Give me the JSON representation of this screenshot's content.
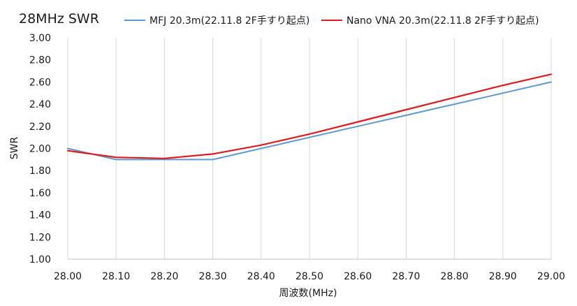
{
  "chart_data": {
    "type": "line",
    "title": "28MHz SWR",
    "xlabel": "周波数(MHz)",
    "ylabel": "SWR",
    "x": [
      28.0,
      28.1,
      28.2,
      28.3,
      28.4,
      28.5,
      28.6,
      28.7,
      28.8,
      28.9,
      29.0
    ],
    "x_tick_labels": [
      "28.00",
      "28.10",
      "28.20",
      "28.30",
      "28.40",
      "28.50",
      "28.60",
      "28.70",
      "28.80",
      "28.90",
      "29.00"
    ],
    "y_tick_labels": [
      "1.00",
      "1.20",
      "1.40",
      "1.60",
      "1.80",
      "2.00",
      "2.20",
      "2.40",
      "2.60",
      "2.80",
      "3.00"
    ],
    "xlim": [
      28.0,
      29.0
    ],
    "ylim": [
      1.0,
      3.0
    ],
    "grid": "vertical",
    "legend_position": "top",
    "series": [
      {
        "name": "MFJ 20.3m(22.11.8 2F手すり起点)",
        "color": "#5b9bd5",
        "values": [
          2.0,
          1.9,
          1.9,
          1.9,
          2.0,
          2.1,
          2.2,
          2.3,
          2.4,
          2.5,
          2.6
        ]
      },
      {
        "name": "Nano VNA 20.3m(22.11.8 2F手すり起点)",
        "color": "#e31a1c",
        "values": [
          1.98,
          1.92,
          1.91,
          1.95,
          2.03,
          2.13,
          2.24,
          2.35,
          2.46,
          2.57,
          2.67
        ]
      }
    ]
  }
}
